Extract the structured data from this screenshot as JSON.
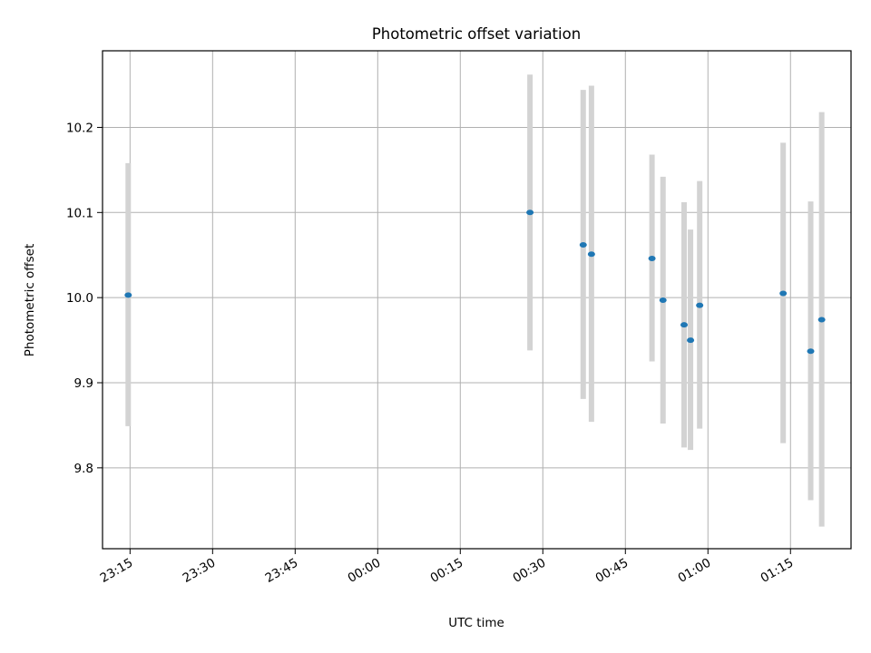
{
  "chart_data": {
    "type": "scatter",
    "title": "Photometric offset variation",
    "xlabel": "UTC time",
    "ylabel": "Photometric offset",
    "grid": true,
    "legend": "none",
    "x_axis": {
      "scale": "time",
      "range": [
        "23:10",
        "01:26"
      ],
      "ticks": [
        "23:15",
        "23:30",
        "23:45",
        "00:00",
        "00:15",
        "00:30",
        "00:45",
        "01:00",
        "01:15"
      ]
    },
    "y_axis": {
      "range": [
        9.705,
        10.29
      ],
      "ticks": [
        "9.8",
        "9.9",
        "10.0",
        "10.1",
        "10.2"
      ]
    },
    "colors": {
      "marker": "#1f77b4",
      "error_bar": "#d3d3d3",
      "grid": "#b0b0b0"
    },
    "series": [
      {
        "marker": "point",
        "points": [
          {
            "x": "23:14:40",
            "y": 10.003,
            "y_low": 9.849,
            "y_high": 10.158
          },
          {
            "x": "00:27:40",
            "y": 10.1,
            "y_low": 9.938,
            "y_high": 10.262
          },
          {
            "x": "00:37:20",
            "y": 10.062,
            "y_low": 9.881,
            "y_high": 10.244
          },
          {
            "x": "00:38:50",
            "y": 10.051,
            "y_low": 9.854,
            "y_high": 10.249
          },
          {
            "x": "00:49:50",
            "y": 10.046,
            "y_low": 9.925,
            "y_high": 10.168
          },
          {
            "x": "00:51:50",
            "y": 9.997,
            "y_low": 9.852,
            "y_high": 10.142
          },
          {
            "x": "00:55:40",
            "y": 9.968,
            "y_low": 9.824,
            "y_high": 10.112
          },
          {
            "x": "00:56:50",
            "y": 9.95,
            "y_low": 9.821,
            "y_high": 10.08
          },
          {
            "x": "00:58:30",
            "y": 9.991,
            "y_low": 9.846,
            "y_high": 10.137
          },
          {
            "x": "01:13:40",
            "y": 10.005,
            "y_low": 9.829,
            "y_high": 10.182
          },
          {
            "x": "01:18:40",
            "y": 9.937,
            "y_low": 9.762,
            "y_high": 10.113
          },
          {
            "x": "01:20:40",
            "y": 9.974,
            "y_low": 9.731,
            "y_high": 10.218
          }
        ]
      }
    ]
  }
}
